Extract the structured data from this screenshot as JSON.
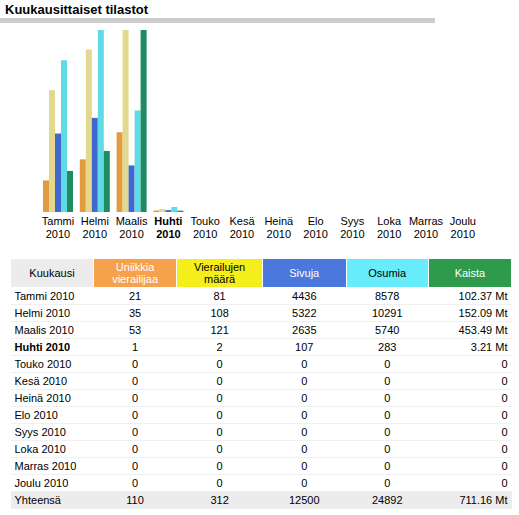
{
  "chart_data": {
    "type": "bar",
    "title": "Kuukausittaiset tilastot",
    "categories": [
      "Tammi 2010",
      "Helmi 2010",
      "Maalis 2010",
      "Huhti 2010",
      "Touko 2010",
      "Kesä 2010",
      "Heinä 2010",
      "Elo 2010",
      "Syys 2010",
      "Loka 2010",
      "Marras 2010",
      "Joulu 2010"
    ],
    "tick_labels": "x",
    "series": [
      {
        "color": "#e39b3f",
        "ylim": [
          0,
          121
        ],
        "values": [
          21,
          35,
          53,
          1,
          0,
          0,
          0,
          0,
          0,
          0,
          0,
          0
        ]
      },
      {
        "color": "#e2d98e",
        "ylim": [
          0,
          121
        ],
        "values": [
          81,
          108,
          121,
          2,
          0,
          0,
          0,
          0,
          0,
          0,
          0,
          0
        ]
      },
      {
        "color": "#4168cf",
        "ylim": [
          0,
          10291
        ],
        "values": [
          4436,
          5322,
          2635,
          107,
          0,
          0,
          0,
          0,
          0,
          0,
          0,
          0
        ]
      },
      {
        "color": "#5fdbe6",
        "ylim": [
          0,
          10291
        ],
        "values": [
          8578,
          10291,
          5740,
          283,
          0,
          0,
          0,
          0,
          0,
          0,
          0,
          0
        ]
      },
      {
        "color": "#1e8c60",
        "ylim": [
          0,
          453.49
        ],
        "values": [
          102.37,
          152.09,
          453.49,
          3.21,
          0,
          0,
          0,
          0,
          0,
          0,
          0,
          0
        ]
      }
    ]
  },
  "table": {
    "header": [
      {
        "text": "Kuukausi",
        "color": "#ececec",
        "text_color": "#000000"
      },
      {
        "text": "Uniikkia vierailijaa",
        "color": "#f6a24c",
        "text_color": "#ffffff"
      },
      {
        "text": "Vierailujen määrä",
        "color": "#f4ee1a",
        "text_color": "#000000"
      },
      {
        "text": "Sivuja",
        "color": "#4a78dc",
        "text_color": "#ffffff"
      },
      {
        "text": "Osumia",
        "color": "#66ecfa",
        "text_color": "#000000"
      },
      {
        "text": "Kaista",
        "color": "#2e9a4c",
        "text_color": "#ffffff"
      }
    ],
    "rows": [
      {
        "bold": false,
        "cells": [
          "Tammi 2010",
          "21",
          "81",
          "4436",
          "8578",
          "102.37 Mt"
        ]
      },
      {
        "bold": false,
        "cells": [
          "Helmi 2010",
          "35",
          "108",
          "5322",
          "10291",
          "152.09 Mt"
        ]
      },
      {
        "bold": false,
        "cells": [
          "Maalis 2010",
          "53",
          "121",
          "2635",
          "5740",
          "453.49 Mt"
        ]
      },
      {
        "bold": true,
        "cells": [
          "Huhti 2010",
          "1",
          "2",
          "107",
          "283",
          "3.21 Mt"
        ]
      },
      {
        "bold": false,
        "cells": [
          "Touko 2010",
          "0",
          "0",
          "0",
          "0",
          "0"
        ]
      },
      {
        "bold": false,
        "cells": [
          "Kesä 2010",
          "0",
          "0",
          "0",
          "0",
          "0"
        ]
      },
      {
        "bold": false,
        "cells": [
          "Heinä 2010",
          "0",
          "0",
          "0",
          "0",
          "0"
        ]
      },
      {
        "bold": false,
        "cells": [
          "Elo 2010",
          "0",
          "0",
          "0",
          "0",
          "0"
        ]
      },
      {
        "bold": false,
        "cells": [
          "Syys 2010",
          "0",
          "0",
          "0",
          "0",
          "0"
        ]
      },
      {
        "bold": false,
        "cells": [
          "Loka 2010",
          "0",
          "0",
          "0",
          "0",
          "0"
        ]
      },
      {
        "bold": false,
        "cells": [
          "Marras 2010",
          "0",
          "0",
          "0",
          "0",
          "0"
        ]
      },
      {
        "bold": false,
        "cells": [
          "Joulu 2010",
          "0",
          "0",
          "0",
          "0",
          "0"
        ]
      }
    ],
    "total": {
      "cells": [
        "Yhteensä",
        "110",
        "312",
        "12500",
        "24892",
        "711.16 Mt"
      ]
    }
  }
}
